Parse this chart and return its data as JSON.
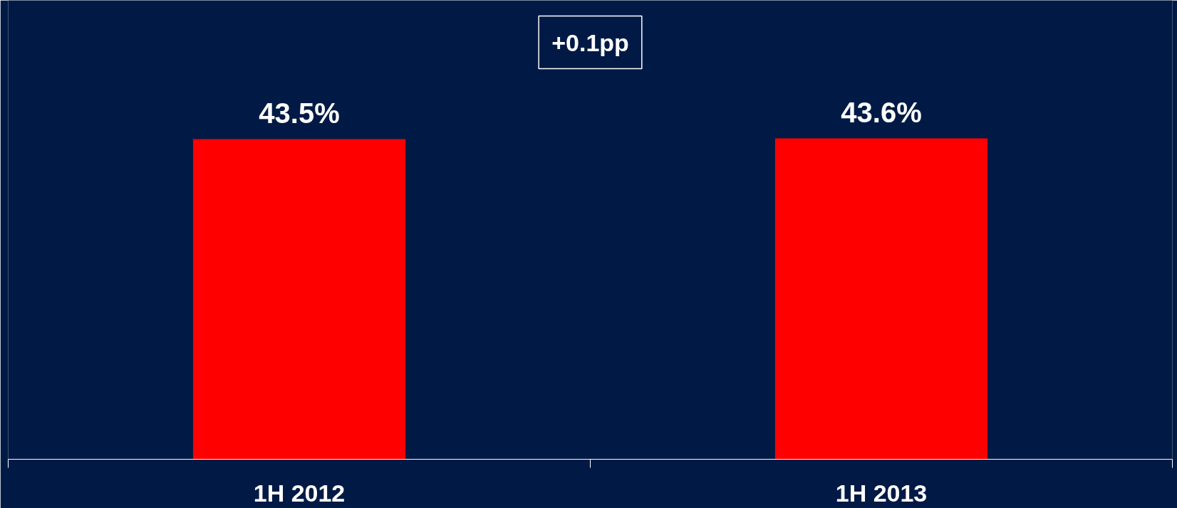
{
  "chart_data": {
    "type": "bar",
    "categories": [
      "1H 2012",
      "1H 2013"
    ],
    "values": [
      43.5,
      43.6
    ],
    "color": "#ff0000",
    "value_labels": [
      "43.5%",
      "43.6%"
    ],
    "annotations": [
      "+0.1pp"
    ]
  }
}
